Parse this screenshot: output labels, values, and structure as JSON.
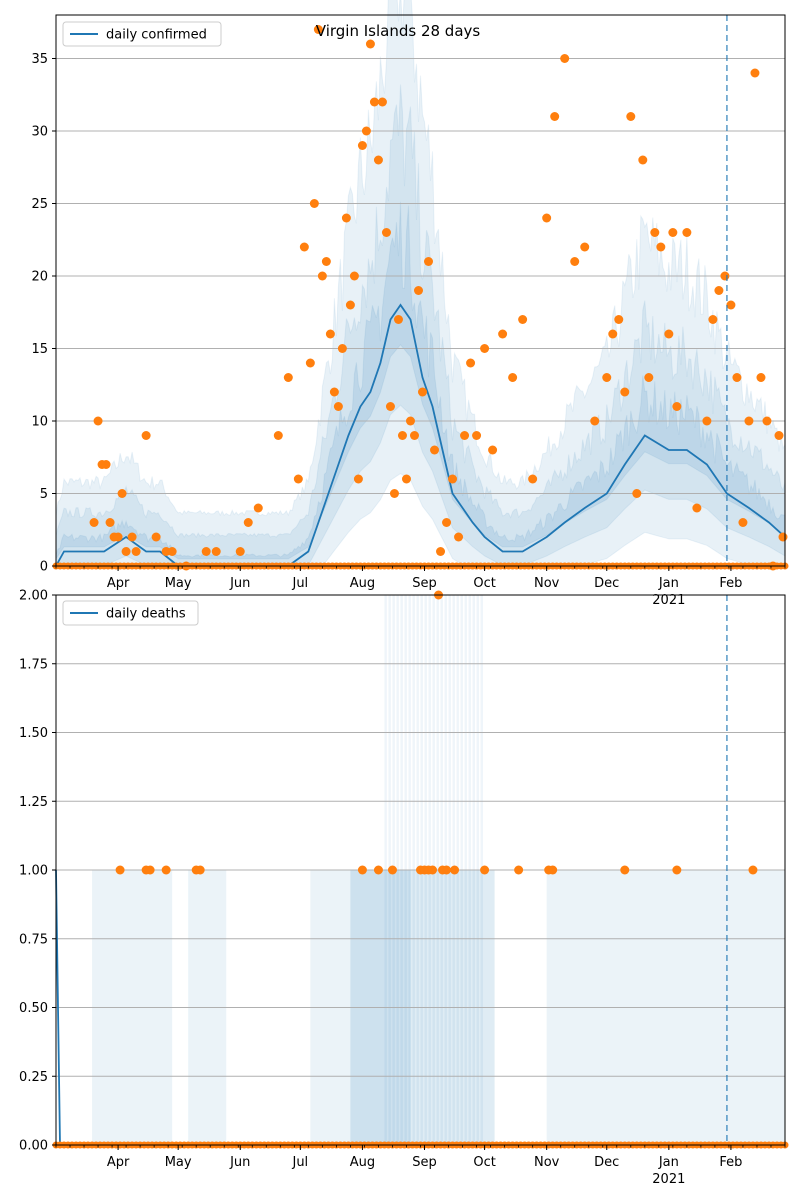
{
  "colors": {
    "line": "#1f77b4",
    "points": "#ff7f0e",
    "band": "#1f77b4",
    "grid": "#b0b0b0",
    "vline": "#1f77b4"
  },
  "chart_data": [
    {
      "type": "line",
      "title": "Virgin Islands 28 days",
      "legend": [
        "daily confirmed"
      ],
      "legend_placement": "top-left",
      "grid": "horizontal",
      "ylim": [
        0,
        38
      ],
      "yticks": [
        0,
        5,
        10,
        15,
        20,
        25,
        30,
        35
      ],
      "ytick_labels": [
        "0",
        "5",
        "10",
        "15",
        "20",
        "25",
        "30",
        "35"
      ],
      "x_start": "2020-03-01",
      "x_end": "2021-02-28",
      "xticks": [
        {
          "date": "2020-04-01",
          "label": "Apr"
        },
        {
          "date": "2020-05-01",
          "label": "May"
        },
        {
          "date": "2020-06-01",
          "label": "Jun"
        },
        {
          "date": "2020-07-01",
          "label": "Jul"
        },
        {
          "date": "2020-08-01",
          "label": "Aug"
        },
        {
          "date": "2020-09-01",
          "label": "Sep"
        },
        {
          "date": "2020-10-01",
          "label": "Oct"
        },
        {
          "date": "2020-11-01",
          "label": "Nov"
        },
        {
          "date": "2020-12-01",
          "label": "Dec"
        },
        {
          "date": "2021-01-01",
          "label": "Jan",
          "sublabel": "2021"
        },
        {
          "date": "2021-02-01",
          "label": "Feb"
        }
      ],
      "vline_date": "2021-01-30",
      "series": [
        {
          "name": "daily confirmed",
          "kind": "line",
          "x": [
            "2020-03-01",
            "2020-03-05",
            "2020-03-15",
            "2020-03-25",
            "2020-04-05",
            "2020-04-15",
            "2020-04-22",
            "2020-05-01",
            "2020-05-15",
            "2020-06-01",
            "2020-06-15",
            "2020-06-25",
            "2020-07-05",
            "2020-07-10",
            "2020-07-15",
            "2020-07-20",
            "2020-07-25",
            "2020-07-31",
            "2020-08-05",
            "2020-08-10",
            "2020-08-15",
            "2020-08-20",
            "2020-08-25",
            "2020-08-31",
            "2020-09-05",
            "2020-09-10",
            "2020-09-15",
            "2020-09-20",
            "2020-09-25",
            "2020-10-01",
            "2020-10-10",
            "2020-10-20",
            "2020-11-01",
            "2020-11-10",
            "2020-11-20",
            "2020-12-01",
            "2020-12-10",
            "2020-12-20",
            "2021-01-01",
            "2021-01-10",
            "2021-01-20",
            "2021-01-30",
            "2021-02-10",
            "2021-02-20",
            "2021-02-28"
          ],
          "y": [
            0,
            1,
            1,
            1,
            2,
            1,
            1,
            0,
            0,
            0,
            0,
            0,
            1,
            3,
            5,
            7,
            9,
            11,
            12,
            14,
            17,
            18,
            17,
            13,
            11,
            8,
            5,
            4,
            3,
            2,
            1,
            1,
            2,
            3,
            4,
            5,
            7,
            9,
            8,
            8,
            7,
            5,
            4,
            3,
            2
          ]
        },
        {
          "name": "daily confirmed (observed)",
          "kind": "points",
          "x": [
            "2020-03-20",
            "2020-03-22",
            "2020-03-24",
            "2020-03-26",
            "2020-03-28",
            "2020-03-30",
            "2020-04-01",
            "2020-04-03",
            "2020-04-05",
            "2020-04-08",
            "2020-04-10",
            "2020-04-15",
            "2020-04-20",
            "2020-04-25",
            "2020-04-28",
            "2020-05-05",
            "2020-05-15",
            "2020-05-20",
            "2020-06-01",
            "2020-06-05",
            "2020-06-10",
            "2020-06-20",
            "2020-06-25",
            "2020-06-30",
            "2020-07-03",
            "2020-07-06",
            "2020-07-08",
            "2020-07-10",
            "2020-07-12",
            "2020-07-14",
            "2020-07-16",
            "2020-07-18",
            "2020-07-20",
            "2020-07-22",
            "2020-07-24",
            "2020-07-26",
            "2020-07-28",
            "2020-07-30",
            "2020-08-01",
            "2020-08-03",
            "2020-08-05",
            "2020-08-07",
            "2020-08-09",
            "2020-08-11",
            "2020-08-13",
            "2020-08-15",
            "2020-08-17",
            "2020-08-19",
            "2020-08-21",
            "2020-08-23",
            "2020-08-25",
            "2020-08-27",
            "2020-08-29",
            "2020-08-31",
            "2020-09-03",
            "2020-09-06",
            "2020-09-09",
            "2020-09-12",
            "2020-09-15",
            "2020-09-18",
            "2020-09-21",
            "2020-09-24",
            "2020-09-27",
            "2020-10-01",
            "2020-10-05",
            "2020-10-10",
            "2020-10-15",
            "2020-10-20",
            "2020-10-25",
            "2020-11-01",
            "2020-11-05",
            "2020-11-10",
            "2020-11-15",
            "2020-11-20",
            "2020-11-25",
            "2020-12-01",
            "2020-12-04",
            "2020-12-07",
            "2020-12-10",
            "2020-12-13",
            "2020-12-16",
            "2020-12-19",
            "2020-12-22",
            "2020-12-25",
            "2020-12-28",
            "2021-01-01",
            "2021-01-03",
            "2021-01-05",
            "2021-01-10",
            "2021-01-15",
            "2021-01-20",
            "2021-01-23",
            "2021-01-26",
            "2021-01-29",
            "2021-02-01",
            "2021-02-04",
            "2021-02-07",
            "2021-02-10",
            "2021-02-13",
            "2021-02-16",
            "2021-02-19",
            "2021-02-22",
            "2021-02-25",
            "2021-02-27"
          ],
          "y": [
            3,
            10,
            7,
            7,
            3,
            2,
            2,
            5,
            1,
            2,
            1,
            9,
            2,
            1,
            1,
            0,
            1,
            1,
            1,
            3,
            4,
            9,
            13,
            6,
            22,
            14,
            25,
            37,
            20,
            21,
            16,
            12,
            11,
            15,
            24,
            18,
            20,
            6,
            29,
            30,
            36,
            32,
            28,
            32,
            23,
            11,
            5,
            17,
            9,
            6,
            10,
            9,
            19,
            12,
            21,
            8,
            1,
            3,
            6,
            2,
            9,
            14,
            9,
            15,
            8,
            16,
            13,
            17,
            6,
            24,
            31,
            35,
            21,
            22,
            10,
            13,
            16,
            17,
            12,
            31,
            5,
            28,
            13,
            23,
            22,
            16,
            23,
            11,
            23,
            4,
            10,
            17,
            19,
            20,
            18,
            13,
            3,
            10,
            34,
            13,
            10,
            0,
            9,
            2
          ]
        }
      ]
    },
    {
      "type": "line",
      "title": "",
      "legend": [
        "daily deaths"
      ],
      "legend_placement": "top-left",
      "grid": "horizontal",
      "ylim": [
        0,
        2
      ],
      "yticks": [
        0,
        0.25,
        0.5,
        0.75,
        1.0,
        1.25,
        1.5,
        1.75,
        2.0
      ],
      "ytick_labels": [
        "0.00",
        "0.25",
        "0.50",
        "0.75",
        "1.00",
        "1.25",
        "1.50",
        "1.75",
        "2.00"
      ],
      "x_start": "2020-03-01",
      "x_end": "2021-02-28",
      "xticks": [
        {
          "date": "2020-04-01",
          "label": "Apr"
        },
        {
          "date": "2020-05-01",
          "label": "May"
        },
        {
          "date": "2020-06-01",
          "label": "Jun"
        },
        {
          "date": "2020-07-01",
          "label": "Jul"
        },
        {
          "date": "2020-08-01",
          "label": "Aug"
        },
        {
          "date": "2020-09-01",
          "label": "Sep"
        },
        {
          "date": "2020-10-01",
          "label": "Oct"
        },
        {
          "date": "2020-11-01",
          "label": "Nov"
        },
        {
          "date": "2020-12-01",
          "label": "Dec"
        },
        {
          "date": "2021-01-01",
          "label": "Jan",
          "sublabel": "2021"
        },
        {
          "date": "2021-02-01",
          "label": "Feb"
        }
      ],
      "vline_date": "2021-01-30",
      "series": [
        {
          "name": "daily deaths",
          "kind": "line",
          "x": [
            "2020-03-01",
            "2020-03-03",
            "2021-02-28"
          ],
          "y": [
            1,
            0,
            0
          ]
        },
        {
          "name": "daily deaths (observed)",
          "kind": "points",
          "x": [
            "2020-04-02",
            "2020-04-15",
            "2020-04-17",
            "2020-04-25",
            "2020-05-10",
            "2020-05-12",
            "2020-08-01",
            "2020-08-09",
            "2020-08-16",
            "2020-08-30",
            "2020-09-01",
            "2020-09-03",
            "2020-09-05",
            "2020-09-08",
            "2020-09-10",
            "2020-09-12",
            "2020-09-16",
            "2020-10-01",
            "2020-10-18",
            "2020-11-02",
            "2020-11-04",
            "2020-12-10",
            "2021-01-05",
            "2021-02-12"
          ],
          "y": [
            1,
            1,
            1,
            1,
            1,
            1,
            1,
            1,
            1,
            1,
            1,
            1,
            1,
            2,
            1,
            1,
            1,
            1,
            1,
            1,
            1,
            1,
            1,
            1
          ]
        }
      ]
    }
  ]
}
